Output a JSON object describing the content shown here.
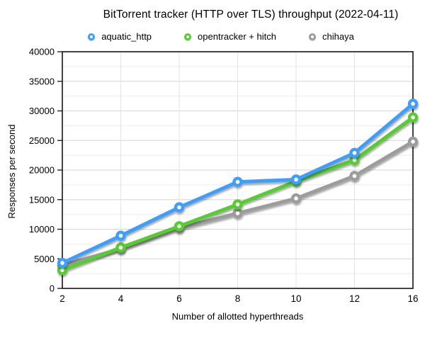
{
  "chart_data": {
    "type": "line",
    "title": "BitTorrent tracker (HTTP over TLS) throughput (2022-04-11)",
    "xlabel": "Number of allotted hyperthreads",
    "ylabel": "Responses per second",
    "categories": [
      2,
      4,
      6,
      8,
      10,
      12,
      16
    ],
    "series": [
      {
        "name": "aquatic_http",
        "color": "#3E9EFC",
        "values": [
          4300,
          8900,
          13700,
          18000,
          18400,
          22900,
          31200
        ]
      },
      {
        "name": "opentracker + hitch",
        "color": "#57CC30",
        "values": [
          3100,
          6900,
          10500,
          14200,
          18100,
          21700,
          28900
        ]
      },
      {
        "name": "chihaya",
        "color": "#9C9C9C",
        "values": [
          3900,
          6700,
          10200,
          12700,
          15200,
          19000,
          24800
        ]
      }
    ],
    "ylim": [
      0,
      40000
    ],
    "y_tick_step": 5000,
    "y_minor_tick_step": 2500,
    "y_tick_labels": [
      "0",
      "5000",
      "10000",
      "15000",
      "20000",
      "25000",
      "30000",
      "35000",
      "40000"
    ],
    "x_tick_labels": [
      "2",
      "4",
      "6",
      "8",
      "10",
      "12",
      "16"
    ],
    "grid": true,
    "legend_position": "top",
    "marker": "open-circle",
    "colors": {
      "axis_frame": "#141414",
      "major_grid": "#d6d6d6",
      "minor_grid": "#ebebeb",
      "vertical_grid": "#e3e3e3",
      "background": "#ffffff",
      "text": "#000000"
    }
  }
}
